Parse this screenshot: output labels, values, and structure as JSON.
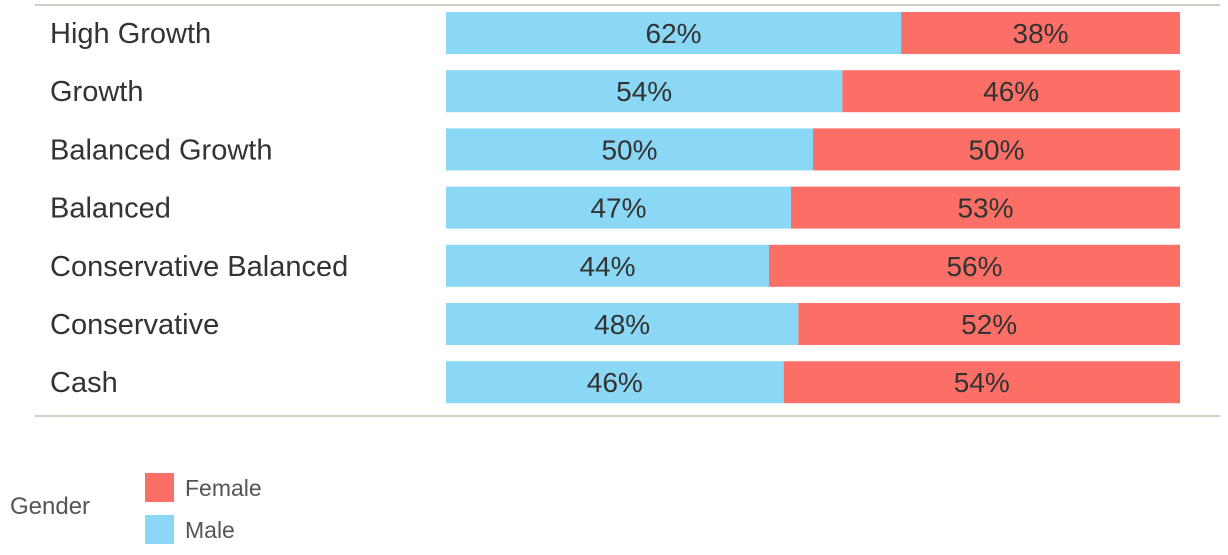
{
  "chart_data": {
    "type": "bar",
    "stacked": "100%",
    "orientation": "horizontal",
    "categories": [
      "High Growth",
      "Growth",
      "Balanced Growth",
      "Balanced",
      "Conservative Balanced",
      "Conservative",
      "Cash"
    ],
    "series": [
      {
        "name": "Male",
        "color": "#8ad8f5",
        "values": [
          62,
          54,
          50,
          47,
          44,
          48,
          46
        ],
        "labels": [
          "62%",
          "54%",
          "50%",
          "47%",
          "44%",
          "48%",
          "46%"
        ]
      },
      {
        "name": "Female",
        "color": "#fb6f66",
        "values": [
          38,
          46,
          50,
          53,
          56,
          52,
          54
        ],
        "labels": [
          "38%",
          "46%",
          "50%",
          "53%",
          "56%",
          "52%",
          "54%"
        ]
      }
    ],
    "xlim": [
      0,
      100
    ],
    "grid": false,
    "legend": {
      "title": "Gender",
      "position": "bottom-left",
      "items": [
        {
          "name": "Female",
          "color": "#fb6f66"
        },
        {
          "name": "Male",
          "color": "#8ad8f5"
        }
      ]
    }
  }
}
